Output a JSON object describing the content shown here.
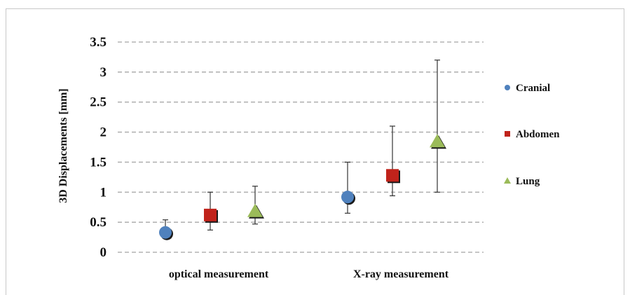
{
  "chart_data": {
    "type": "scatter",
    "title": "",
    "xlabel": "",
    "ylabel": "3D Displacements [mm]",
    "ylim": [
      0,
      3.5
    ],
    "yticks": [
      "0",
      "0.5",
      "1",
      "1.5",
      "2",
      "2.5",
      "3",
      "3.5"
    ],
    "categories": [
      "optical measurement",
      "X-ray measurement"
    ],
    "grid": true,
    "legend_position": "right",
    "series": [
      {
        "name": "Cranial",
        "marker": "circle",
        "color": "#4f81bd",
        "values": [
          0.33,
          0.92
        ],
        "err_low": [
          0.27,
          0.65
        ],
        "err_high": [
          0.54,
          1.5
        ]
      },
      {
        "name": "Abdomen",
        "marker": "square",
        "color": "#c0231b",
        "values": [
          0.62,
          1.28
        ],
        "err_low": [
          0.37,
          0.94
        ],
        "err_high": [
          1.0,
          2.1
        ]
      },
      {
        "name": "Lung",
        "marker": "triangle",
        "color": "#9bbb59",
        "values": [
          0.68,
          1.84
        ],
        "err_low": [
          0.47,
          1.0
        ],
        "err_high": [
          1.1,
          3.2
        ]
      }
    ]
  }
}
